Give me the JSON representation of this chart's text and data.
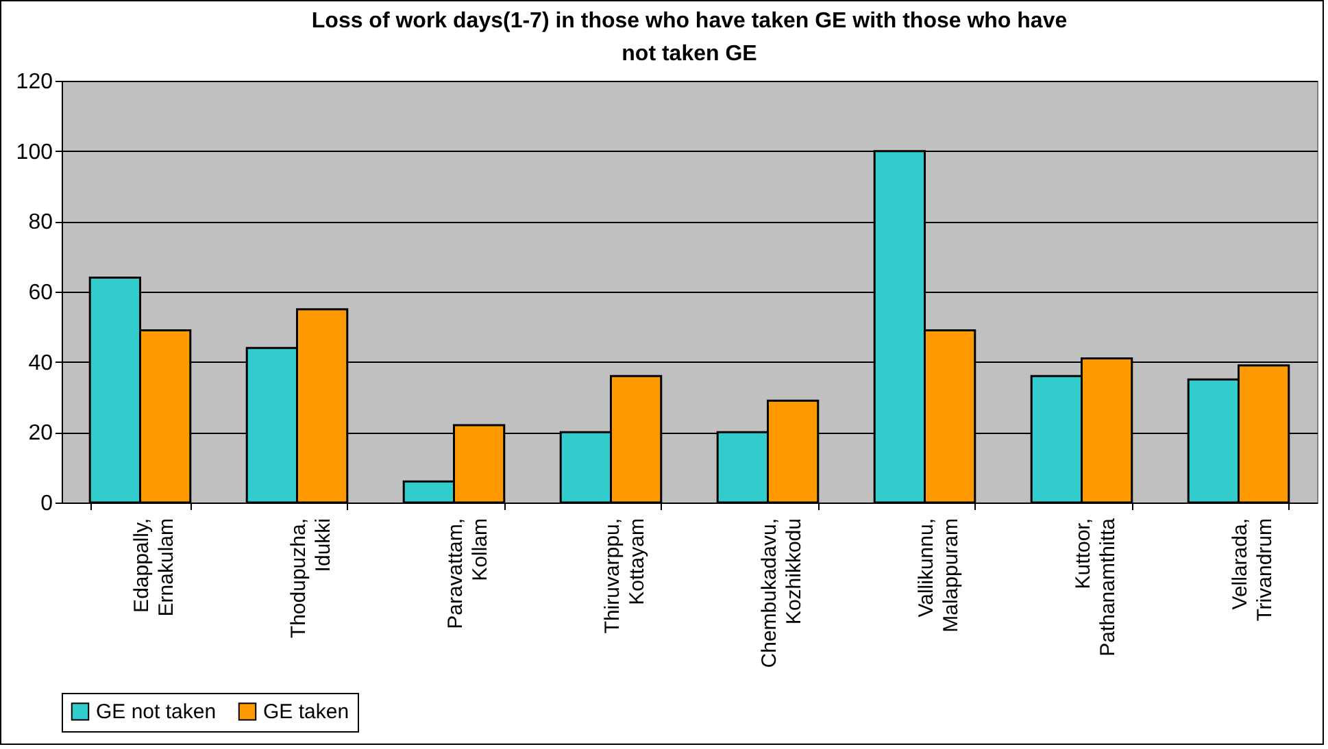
{
  "chart_data": {
    "type": "bar",
    "title": "Loss of work days(1-7) in those who have taken GE with those who have not taken GE",
    "categories": [
      "Edappally, Ernakulam",
      "Thodupuzha, Idukki",
      "Paravattam, Kollam",
      "Thiruvarppu, Kottayam",
      "Chembukadavu, Kozhikkodu",
      "Vallikunnu, Malappuram",
      "Kuttoor, Pathanamthitta",
      "Vellarada, Trivandrum"
    ],
    "series": [
      {
        "name": "GE not taken",
        "color": "#33cccc",
        "values": [
          64,
          44,
          6,
          20,
          20,
          100,
          36,
          35
        ]
      },
      {
        "name": "GE taken",
        "color": "#ff9900",
        "values": [
          49,
          55,
          22,
          36,
          29,
          49,
          41,
          39
        ]
      }
    ],
    "ylim": [
      0,
      120
    ],
    "yticks": [
      0,
      20,
      40,
      60,
      80,
      100,
      120
    ],
    "grid": "y",
    "legend": "bottom"
  }
}
